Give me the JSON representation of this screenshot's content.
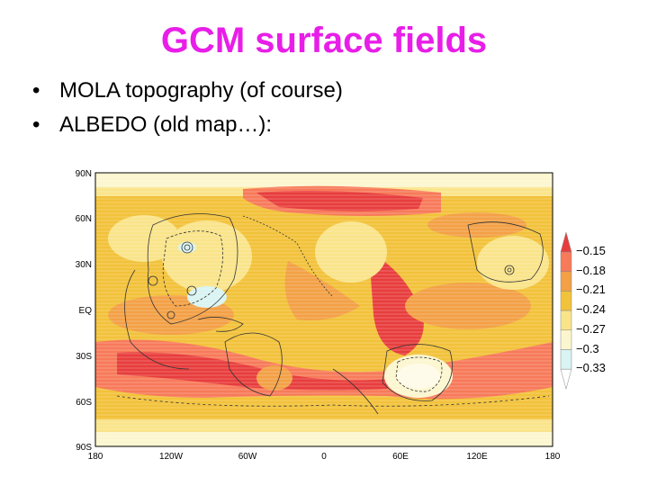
{
  "slide": {
    "title": "GCM surface fields",
    "title_color": "#e81ee8",
    "bullets": [
      "MOLA topography (of course)",
      "ALBEDO (old map…):"
    ]
  },
  "map": {
    "lat_labels": [
      "90N",
      "60N",
      "30N",
      "EQ",
      "30S",
      "60S",
      "90S"
    ],
    "lon_labels": [
      "180",
      "120W",
      "60W",
      "0",
      "60E",
      "120E",
      "180"
    ],
    "colorbar": {
      "labels": [
        "−0.15",
        "−0.18",
        "−0.21",
        "−0.24",
        "−0.27",
        "−0.3",
        "−0.33"
      ],
      "colors": [
        "#e83d3d",
        "#f77a5a",
        "#f3a046",
        "#f2c23a",
        "#f9e48a",
        "#fcf6cf",
        "#d9f4f2",
        "#ffffff"
      ]
    }
  }
}
